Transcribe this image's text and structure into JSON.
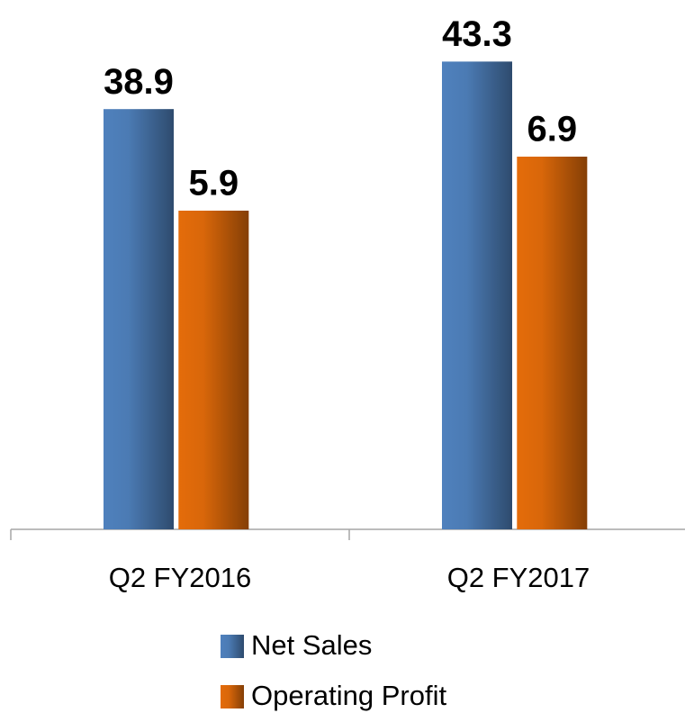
{
  "chart_data": {
    "type": "bar",
    "categories": [
      "Q2 FY2016",
      "Q2 FY2017"
    ],
    "series": [
      {
        "name": "Net Sales",
        "color": "#4f81bd",
        "values": [
          38.9,
          43.3
        ]
      },
      {
        "name": "Operating Profit",
        "color": "#e46c0a",
        "values": [
          5.9,
          6.9
        ],
        "axis": "y2"
      }
    ],
    "ylim": [
      0,
      45
    ],
    "y2lim": [
      0,
      9
    ]
  }
}
